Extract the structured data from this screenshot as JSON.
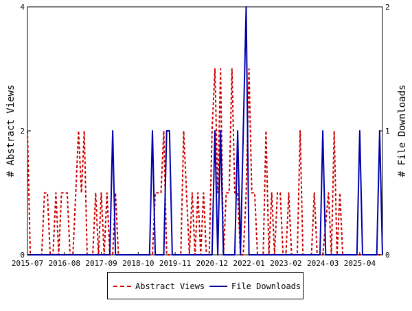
{
  "chart_data": {
    "type": "line",
    "y_left": {
      "label": "# Abstract Views",
      "ylim": [
        0,
        4
      ],
      "ticks": [
        "0",
        "2",
        "4"
      ]
    },
    "y_right": {
      "label": "# File Downloads",
      "ylim": [
        0,
        2
      ],
      "ticks": [
        "0",
        "1",
        "2"
      ]
    },
    "x_tick_labels": [
      "2015-07",
      "2016-08",
      "2017-09",
      "2018-10",
      "2019-11",
      "2020-12",
      "2022-01",
      "2023-02",
      "2024-03",
      "2025-04"
    ],
    "x_range": [
      "2015-07",
      "2025-12"
    ],
    "grid": false,
    "legend": "bottom",
    "colors": {
      "abstract_views": "#cc0000",
      "file_downloads": "#0000aa"
    },
    "series": [
      {
        "name": "Abstract Views",
        "axis": "left",
        "style": "dashed",
        "points": [
          [
            "2015-07",
            2
          ],
          [
            "2015-08",
            0
          ],
          [
            "2015-12",
            0
          ],
          [
            "2016-01",
            1
          ],
          [
            "2016-02",
            1
          ],
          [
            "2016-03",
            0
          ],
          [
            "2016-04",
            0
          ],
          [
            "2016-05",
            1
          ],
          [
            "2016-06",
            0
          ],
          [
            "2016-07",
            1
          ],
          [
            "2016-08",
            1
          ],
          [
            "2016-09",
            1
          ],
          [
            "2016-10",
            0
          ],
          [
            "2016-11",
            0
          ],
          [
            "2016-12",
            1
          ],
          [
            "2017-01",
            2
          ],
          [
            "2017-02",
            1
          ],
          [
            "2017-03",
            2
          ],
          [
            "2017-04",
            0
          ],
          [
            "2017-06",
            0
          ],
          [
            "2017-07",
            1
          ],
          [
            "2017-08",
            0
          ],
          [
            "2017-09",
            1
          ],
          [
            "2017-10",
            0
          ],
          [
            "2017-11",
            1
          ],
          [
            "2017-12",
            0
          ],
          [
            "2018-01",
            0
          ],
          [
            "2018-02",
            1
          ],
          [
            "2018-03",
            0
          ],
          [
            "2018-09",
            0
          ],
          [
            "2018-10",
            0
          ],
          [
            "2019-03",
            0
          ],
          [
            "2019-04",
            1
          ],
          [
            "2019-05",
            1
          ],
          [
            "2019-06",
            1
          ],
          [
            "2019-07",
            2
          ],
          [
            "2019-08",
            0
          ],
          [
            "2019-10",
            0
          ],
          [
            "2019-11",
            0
          ],
          [
            "2020-01",
            0
          ],
          [
            "2020-02",
            2
          ],
          [
            "2020-03",
            1
          ],
          [
            "2020-04",
            0
          ],
          [
            "2020-05",
            1
          ],
          [
            "2020-06",
            0
          ],
          [
            "2020-07",
            1
          ],
          [
            "2020-08",
            0
          ],
          [
            "2020-09",
            1
          ],
          [
            "2020-10",
            0
          ],
          [
            "2020-11",
            0
          ],
          [
            "2020-12",
            2
          ],
          [
            "2021-01",
            3
          ],
          [
            "2021-02",
            1
          ],
          [
            "2021-03",
            3
          ],
          [
            "2021-04",
            0
          ],
          [
            "2021-05",
            1
          ],
          [
            "2021-06",
            1
          ],
          [
            "2021-07",
            3
          ],
          [
            "2021-08",
            1
          ],
          [
            "2021-09",
            1
          ],
          [
            "2021-10",
            0
          ],
          [
            "2021-11",
            0
          ],
          [
            "2021-12",
            1
          ],
          [
            "2022-01",
            3
          ],
          [
            "2022-02",
            1
          ],
          [
            "2022-03",
            1
          ],
          [
            "2022-04",
            0
          ],
          [
            "2022-05",
            0
          ],
          [
            "2022-06",
            0
          ],
          [
            "2022-07",
            2
          ],
          [
            "2022-08",
            0
          ],
          [
            "2022-09",
            1
          ],
          [
            "2022-10",
            0
          ],
          [
            "2022-11",
            1
          ],
          [
            "2022-12",
            1
          ],
          [
            "2023-01",
            0
          ],
          [
            "2023-02",
            0
          ],
          [
            "2023-03",
            1
          ],
          [
            "2023-04",
            0
          ],
          [
            "2023-05",
            0
          ],
          [
            "2023-06",
            0
          ],
          [
            "2023-07",
            2
          ],
          [
            "2023-08",
            0
          ],
          [
            "2023-10",
            0
          ],
          [
            "2023-11",
            0
          ],
          [
            "2023-12",
            1
          ],
          [
            "2024-01",
            0
          ],
          [
            "2024-02",
            0
          ],
          [
            "2024-03",
            0
          ],
          [
            "2024-05",
            1
          ],
          [
            "2024-06",
            0
          ],
          [
            "2024-07",
            2
          ],
          [
            "2024-08",
            0
          ],
          [
            "2024-09",
            1
          ],
          [
            "2024-10",
            0
          ],
          [
            "2024-11",
            0
          ],
          [
            "2024-12",
            0
          ],
          [
            "2025-12",
            0
          ]
        ]
      },
      {
        "name": "File Downloads",
        "axis": "right",
        "style": "solid",
        "points": [
          [
            "2015-07",
            0
          ],
          [
            "2017-12",
            0
          ],
          [
            "2018-01",
            1
          ],
          [
            "2018-02",
            0
          ],
          [
            "2019-02",
            0
          ],
          [
            "2019-03",
            1
          ],
          [
            "2019-04",
            0
          ],
          [
            "2019-07",
            0
          ],
          [
            "2019-08",
            1
          ],
          [
            "2019-09",
            1
          ],
          [
            "2019-10",
            0
          ],
          [
            "2020-12",
            0
          ],
          [
            "2021-01",
            1
          ],
          [
            "2021-02",
            0
          ],
          [
            "2021-03",
            1
          ],
          [
            "2021-04",
            0
          ],
          [
            "2021-08",
            0
          ],
          [
            "2021-09",
            1
          ],
          [
            "2021-10",
            0
          ],
          [
            "2021-11",
            1
          ],
          [
            "2021-12",
            2
          ],
          [
            "2022-01",
            0
          ],
          [
            "2024-02",
            0
          ],
          [
            "2024-03",
            1
          ],
          [
            "2024-04",
            0
          ],
          [
            "2025-03",
            0
          ],
          [
            "2025-04",
            1
          ],
          [
            "2025-05",
            0
          ],
          [
            "2025-10",
            0
          ],
          [
            "2025-11",
            1
          ],
          [
            "2025-12",
            0
          ]
        ]
      }
    ]
  }
}
